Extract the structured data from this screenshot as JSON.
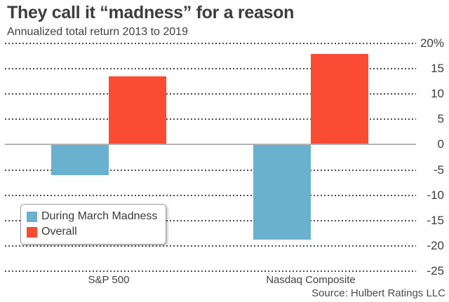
{
  "header": {
    "title": "They call it “madness” for a reason",
    "subtitle": "Annualized total return 2013 to 2019"
  },
  "source": "Source: Hulbert Ratings LLC",
  "colors": {
    "during_march_madness": "#69b1ce",
    "overall": "#fa4b33",
    "zero_line": "#b3b3b3",
    "gridline": "#4d4d4d",
    "text": "#3d3d3d"
  },
  "chart_data": {
    "type": "bar",
    "title": "They call it “madness” for a reason",
    "subtitle": "Annualized total return 2013 to 2019",
    "categories": [
      "S&P 500",
      "Nasdaq Composite"
    ],
    "series": [
      {
        "name": "During March Madness",
        "color": "#69b1ce",
        "values": [
          -6,
          -18.8
        ]
      },
      {
        "name": "Overall",
        "color": "#fa4b33",
        "values": [
          13.5,
          17.9
        ]
      }
    ],
    "ylabel": "",
    "xlabel": "",
    "ylim": [
      -25,
      20
    ],
    "ytick_step": 5,
    "ytick_labels": [
      "20%",
      "15",
      "10",
      "5",
      "0",
      "-5",
      "-10",
      "-15",
      "-20",
      "-25"
    ],
    "grid": "horizontal-dotted",
    "zero_line": "solid",
    "legend_position": "bottom-left",
    "source": "Source: Hulbert Ratings LLC"
  }
}
